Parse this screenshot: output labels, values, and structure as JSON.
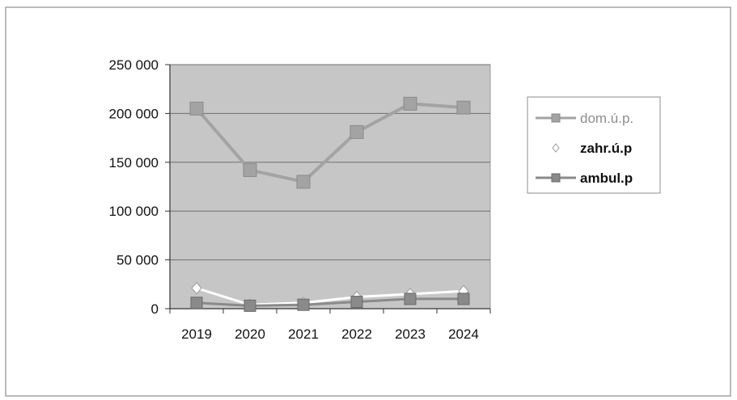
{
  "chart_data": {
    "type": "line",
    "categories": [
      "2019",
      "2020",
      "2021",
      "2022",
      "2023",
      "2024"
    ],
    "ylim": [
      0,
      250000
    ],
    "yticks": [
      0,
      50000,
      100000,
      150000,
      200000,
      250000
    ],
    "ytick_labels": [
      "0",
      "50 000",
      "100 000",
      "150 000",
      "200 000",
      "250 000"
    ],
    "grid": true,
    "legend_position": "right",
    "series": [
      {
        "name": "dom.ú.p.",
        "values": [
          205000,
          142000,
          130000,
          181000,
          210000,
          206000
        ],
        "color": "#a3a3a3",
        "marker": "triangle"
      },
      {
        "name": "zahr.ú.p",
        "values": [
          21000,
          4000,
          6000,
          12000,
          15000,
          18000
        ],
        "color": "#ffffff",
        "marker": "diamond"
      },
      {
        "name": "ambul.p",
        "values": [
          6000,
          3000,
          4000,
          7000,
          10000,
          10000
        ],
        "color": "#8a8a8a",
        "marker": "square"
      }
    ]
  }
}
